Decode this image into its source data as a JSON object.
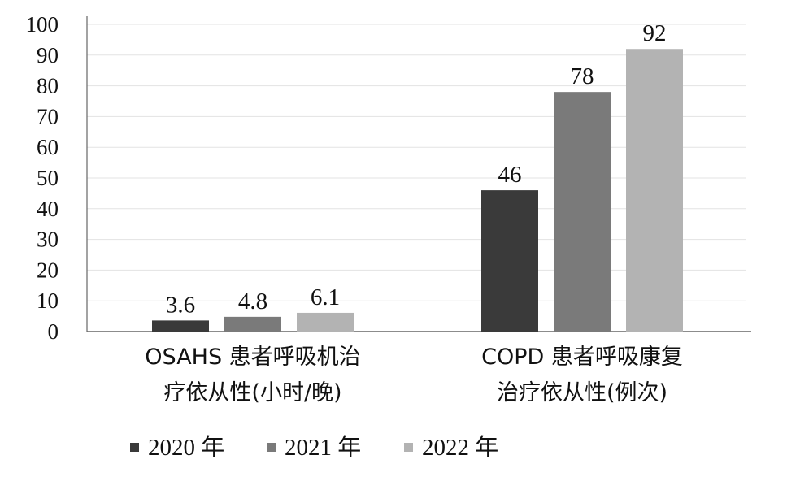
{
  "chart_data": {
    "type": "bar",
    "categories": [
      [
        "OSAHS 患者呼吸机治",
        "疗依从性(小时/晚)"
      ],
      [
        "COPD 患者呼吸康复",
        "治疗依从性(例次)"
      ]
    ],
    "series": [
      {
        "name": "2020 年",
        "values": [
          3.6,
          46
        ],
        "color": "#3a3a3a"
      },
      {
        "name": "2021 年",
        "values": [
          4.8,
          78
        ],
        "color": "#7a7a7a"
      },
      {
        "name": "2022 年",
        "values": [
          6.1,
          92
        ],
        "color": "#b3b3b3"
      }
    ],
    "data_labels": [
      [
        "3.6",
        "46"
      ],
      [
        "4.8",
        "78"
      ],
      [
        "6.1",
        "92"
      ]
    ],
    "ylim": [
      0,
      100
    ],
    "yticks": [
      0,
      10,
      20,
      30,
      40,
      50,
      60,
      70,
      80,
      90,
      100
    ],
    "grid": true,
    "legend": "bottom",
    "title": "",
    "xlabel": "",
    "ylabel": ""
  }
}
